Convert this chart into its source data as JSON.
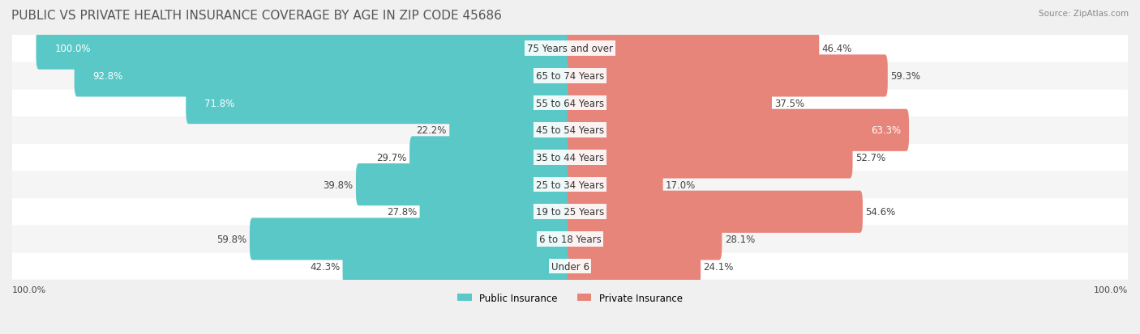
{
  "title": "PUBLIC VS PRIVATE HEALTH INSURANCE COVERAGE BY AGE IN ZIP CODE 45686",
  "source": "Source: ZipAtlas.com",
  "categories": [
    "Under 6",
    "6 to 18 Years",
    "19 to 25 Years",
    "25 to 34 Years",
    "35 to 44 Years",
    "45 to 54 Years",
    "55 to 64 Years",
    "65 to 74 Years",
    "75 Years and over"
  ],
  "public_values": [
    42.3,
    59.8,
    27.8,
    39.8,
    29.7,
    22.2,
    71.8,
    92.8,
    100.0
  ],
  "private_values": [
    24.1,
    28.1,
    54.6,
    17.0,
    52.7,
    63.3,
    37.5,
    59.3,
    46.4
  ],
  "public_color": "#5bc8c8",
  "private_color": "#e8857a",
  "bg_color": "#f0f0f0",
  "bar_bg_color": "#e8e8e8",
  "bar_height": 0.55,
  "title_fontsize": 11,
  "label_fontsize": 8.5,
  "category_fontsize": 8.5,
  "axis_label_left": "100.0%",
  "axis_label_right": "100.0%",
  "legend_public": "Public Insurance",
  "legend_private": "Private Insurance"
}
